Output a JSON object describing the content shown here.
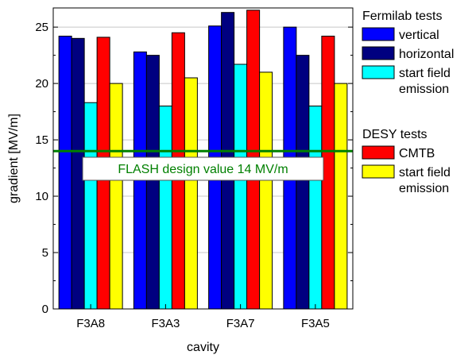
{
  "chart_data": {
    "type": "bar",
    "xlabel": "cavity",
    "ylabel": "gradient [MV/m]",
    "ylim": [
      0,
      26.7
    ],
    "yticks": [
      0,
      5,
      10,
      15,
      20,
      25
    ],
    "grid": true,
    "categories": [
      "F3A8",
      "F3A3",
      "F3A7",
      "F3A5"
    ],
    "series": [
      {
        "name": "vertical",
        "values": [
          24.2,
          22.8,
          25.1,
          25.0
        ],
        "color": "#0000ff"
      },
      {
        "name": "horizontal",
        "values": [
          24.0,
          22.5,
          26.3,
          22.5
        ],
        "color": "#000080"
      },
      {
        "name": "start field emission",
        "values": [
          18.3,
          18.0,
          21.7,
          18.0
        ],
        "color": "#00ffff"
      },
      {
        "name": "CMTB",
        "values": [
          24.1,
          24.5,
          26.5,
          24.2
        ],
        "color": "#ff0000"
      },
      {
        "name": "start field emission",
        "values": [
          20.0,
          20.5,
          21.0,
          20.0
        ],
        "color": "#ffff00"
      }
    ],
    "reference_line": {
      "value": 14,
      "label": "FLASH design value 14 MV/m",
      "color": "#008000"
    },
    "legend": {
      "placement": "right",
      "groups": [
        {
          "title": "Fermilab tests",
          "series_index": [
            0,
            1,
            2
          ]
        },
        {
          "title": "DESY tests",
          "series_index": [
            3,
            4
          ]
        }
      ]
    }
  }
}
